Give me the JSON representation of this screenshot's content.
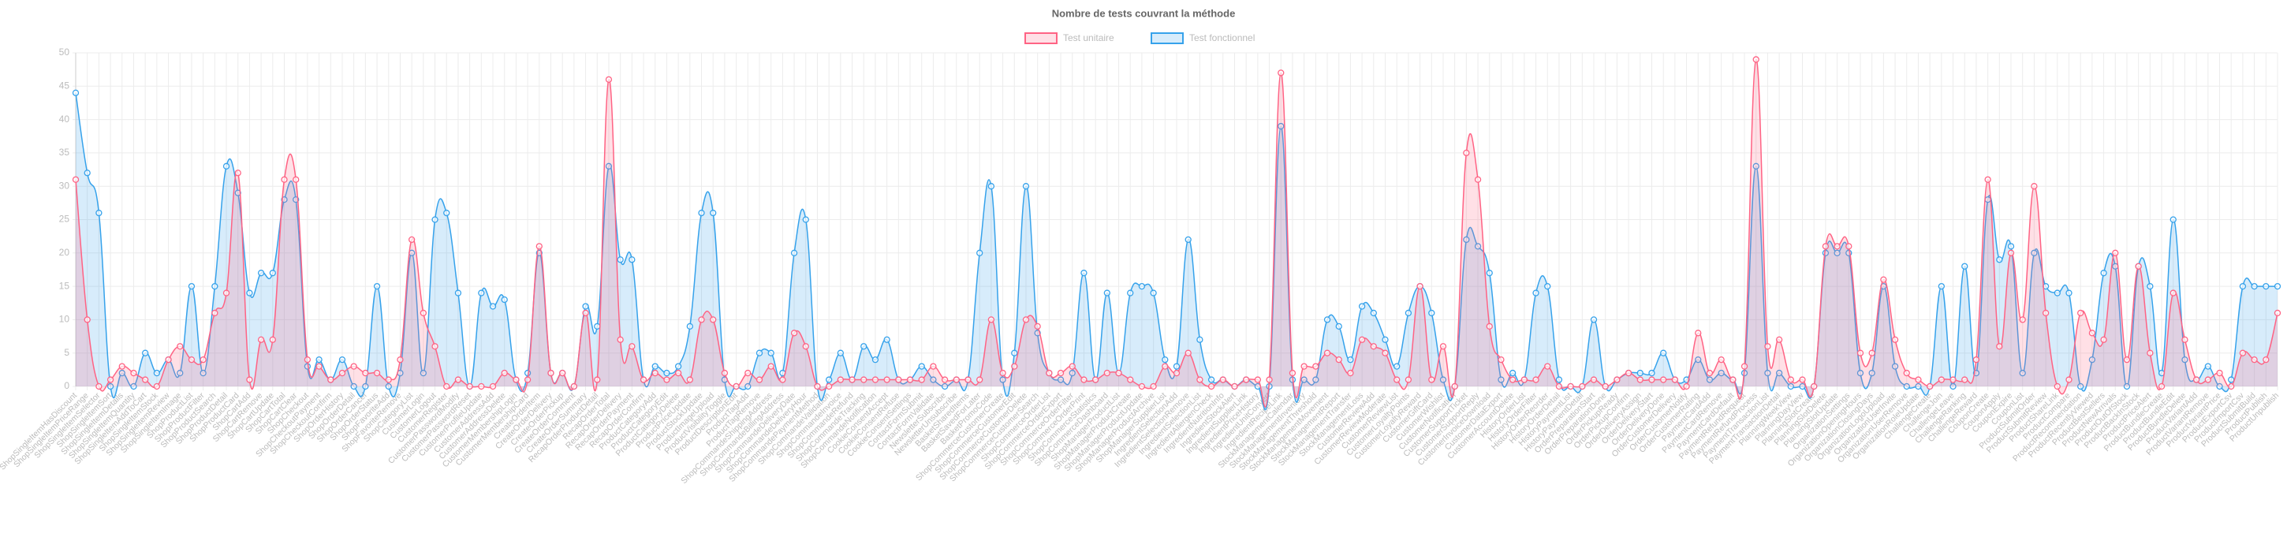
{
  "chart_data": {
    "type": "line",
    "title": "Nombre de tests couvrant la méthode",
    "categories": [
      "ShopSingleItemHasDiscount",
      "ShopSingleItemPriceRange",
      "ShopSingleItemSelector",
      "ShopSingleItemSort",
      "ShopSingleItemDetails",
      "ShopSingleItemQuantity",
      "ShopSingleItemAddToCart",
      "ShopSingleItemStock",
      "ShopSingleItemReview",
      "ShopSingleItemImage",
      "ShopProductList",
      "ShopProductFilter",
      "ShopProductSearch",
      "ShopProductDetail",
      "ShopProductCard",
      "ShopCartAdd",
      "ShopCartRemove",
      "ShopCartUpdate",
      "ShopCartTotal",
      "ShopCartClear",
      "ShopCheckout",
      "ShopCheckoutPayment",
      "ShopCheckoutConfirm",
      "ShopOrderHistory",
      "ShopOrderDetail",
      "ShopOrderCancel",
      "ShopOrderStatus",
      "ShopFavoriteAdd",
      "ShopFavoriteRemove",
      "ShopCategoryList",
      "CustomerLogin",
      "CustomerLogout",
      "CustomerRegister",
      "CustomerPasswordModify",
      "CustomerPasswordReset",
      "CustomerProfileUpdate",
      "CustomerAddressAdd",
      "CustomerAddressDelete",
      "CustomerMembershipLogin",
      "CustomerMembershipCard",
      "CreateOrderItem",
      "CreateOrderDelivery",
      "CreateOrderPickup",
      "CreateOrderComment",
      "CreateOrderSummary",
      "RecapOrderProductDetail",
      "RecapOrderTotal",
      "RecapOrderDelivery",
      "RecapOrderPayment",
      "RecapOrderConfirm",
      "ProductCategoryAdd",
      "ProductCategoryEdit",
      "ProductCategoryDelete",
      "ProductPriceUpdate",
      "ProductStockUpdate",
      "ProductImageUpload",
      "ProductVisibilityToggle",
      "ProductDescriptionEdit",
      "ProductTagAdd",
      "ProductTagRemove",
      "ShopCommandeShippingAddress",
      "ShopCommandeBillingAddress",
      "ShopCommandeDeliveryDate",
      "ShopCommandeDeliveryHour",
      "ShopCommandePaymentMethod",
      "ShopCommandeValidation",
      "ShopCommandeInvoice",
      "ShopCommandeRefund",
      "ShopCommandeTracking",
      "ShopCommandeNotification",
      "CookieConsentAccept",
      "CookieConsentRefuse",
      "CookieConsentSettings",
      "ContactFormSubmit",
      "ContactFormValidate",
      "NewsletterSubscribe",
      "NewsletterUnsubscribe",
      "BasketSharedItems",
      "BasketSavedForLater",
      "BasketPromoCode",
      "ShopCommerceCustomerCreate",
      "ShopCommerceCustomerEdit",
      "ShopCommerceCustomerDelete",
      "ShopCommerceCustomerSearch",
      "ShopCommerceOrderList",
      "ShopCommerceOrderExport",
      "ShopCommerceOrderFilter",
      "ShopCommerceOrderPrint",
      "ShopCommerceStatistics",
      "ShopCommerceDashboard",
      "ShopManagerProductList",
      "ShopManagerProductCreate",
      "ShopManagerProductUpdate",
      "ShopManagerProductArchive",
      "ShopManagerSupplierList",
      "IngredientSelectionAdd",
      "IngredientSelectionRemove",
      "IngredientSelectionList",
      "IngredientAllergenCheck",
      "IngredientNutritionInfo",
      "IngredientStockAlert",
      "IngredientSupplierLink",
      "IngredientPriceHistory",
      "IngredientUnitConvert",
      "IngredientRecipeLink",
      "StockManagementCalendar",
      "StockManagementInventory",
      "StockManagementThreshold",
      "StockManagementMovement",
      "StockManagementReport",
      "StockManagementTransfer",
      "StockManagementLoss",
      "CustomerReviewAdd",
      "CustomerReviewModerate",
      "CustomerReviewList",
      "CustomerLoyaltyPoints",
      "CustomerLoyaltyReward",
      "CustomerGiftCard",
      "CustomerWishlist",
      "CustomerNotification",
      "CustomerSupportTicket",
      "CustomerSupportReply",
      "CustomerInvoiceDownload",
      "CustomerDataExport",
      "CustomerAccountDelete",
      "HistoryOrderList",
      "HistoryOrderFilter",
      "HistoryOrderReorder",
      "HistoryOrderDetail",
      "HistoryPaymentList",
      "HistoryPaymentDetail",
      "OrderPreparationStart",
      "OrderPreparationDone",
      "OrderPickupReady",
      "OrderPickupConfirm",
      "OrderDeliveryAssign",
      "OrderDeliveryStart",
      "OrderDeliveryDone",
      "OrderCustomerDelivery",
      "OrderCustomerNotify",
      "OrderCustomerRating",
      "PaymentCardAdd",
      "PaymentCardRemove",
      "PaymentCardDefault",
      "PaymentRefundRequest",
      "PaymentRefundProcess",
      "PaymentTransactionList",
      "PaymentTransactionDetail",
      "PlanningWeekView",
      "PlanningDayView",
      "PlanningSlotCreate",
      "PlanningSlotDelete",
      "PlanningSlotUpdate",
      "OrganizationSettings",
      "OrganizationOpeningHours",
      "OrganizationClosingDays",
      "OrganizationLogoUpload",
      "OrganizationUserInvite",
      "OrganizationUserRemove",
      "OrganizationRoleUpdate",
      "ChallengeCreate",
      "ChallengeJoin",
      "ChallengeLeave",
      "ChallengeRanking",
      "ChallengeReward",
      "CouponCreate",
      "CouponApply",
      "CouponExpire",
      "CouponList",
      "ProductSubmitOrder",
      "ProductSubmitReview",
      "ProductShareLink",
      "ProductCompare",
      "ProductRecommendation",
      "ProductRecentlyViewed",
      "ProductBestSellers",
      "ProductNewArrivals",
      "ProductOutOfStock",
      "ProductBackInStock",
      "ProductPriceAlert",
      "ProductBundleCreate",
      "ProductBundleEdit",
      "ProductBundleDelete",
      "ProductVariantAdd",
      "ProductVariantRemove",
      "ProductVariantPrice",
      "ProductExportCsv",
      "ProductImportCsv",
      "ProductSubmitBuild",
      "ProductPublish",
      "ProductUnpublish"
    ],
    "series": [
      {
        "name": "Test unitaire",
        "color": "#ff6384",
        "values": [
          31,
          10,
          0,
          1,
          3,
          2,
          1,
          0,
          4,
          6,
          4,
          4,
          11,
          14,
          32,
          1,
          7,
          7,
          31,
          31,
          4,
          3,
          1,
          2,
          3,
          2,
          2,
          1,
          4,
          22,
          11,
          6,
          0,
          1,
          0,
          0,
          0,
          2,
          1,
          1,
          21,
          2,
          2,
          0,
          11,
          1,
          46,
          7,
          6,
          1,
          2,
          1,
          2,
          1,
          10,
          10,
          2,
          0,
          2,
          1,
          3,
          1,
          8,
          6,
          0,
          0,
          1,
          1,
          1,
          1,
          1,
          1,
          1,
          1,
          3,
          1,
          1,
          1,
          1,
          10,
          2,
          3,
          10,
          9,
          2,
          2,
          3,
          1,
          1,
          2,
          2,
          1,
          0,
          0,
          3,
          2,
          5,
          1,
          0,
          1,
          0,
          1,
          1,
          1,
          47,
          2,
          3,
          3,
          5,
          4,
          2,
          7,
          6,
          5,
          1,
          1,
          15,
          1,
          6,
          0,
          35,
          31,
          9,
          4,
          1,
          1,
          1,
          3,
          0,
          0,
          0,
          1,
          0,
          1,
          2,
          1,
          1,
          1,
          1,
          0,
          8,
          2,
          4,
          1,
          3,
          49,
          6,
          7,
          1,
          1,
          0,
          21,
          21,
          21,
          5,
          5,
          16,
          7,
          2,
          1,
          0,
          1,
          1,
          1,
          4,
          31,
          6,
          20,
          10,
          30,
          11,
          0,
          1,
          11,
          8,
          7,
          20,
          4,
          18,
          5,
          0,
          14,
          7,
          1,
          1,
          2,
          0,
          5,
          4,
          4,
          11
        ]
      },
      {
        "name": "Test fonctionnel",
        "color": "#36a2eb",
        "values": [
          44,
          32,
          26,
          0,
          2,
          0,
          5,
          2,
          4,
          2,
          15,
          2,
          15,
          33,
          29,
          14,
          17,
          17,
          28,
          28,
          3,
          4,
          1,
          4,
          0,
          0,
          15,
          0,
          2,
          20,
          2,
          25,
          26,
          14,
          0,
          14,
          12,
          13,
          1,
          2,
          20,
          2,
          2,
          0,
          12,
          9,
          33,
          19,
          19,
          1,
          3,
          2,
          3,
          9,
          26,
          26,
          1,
          0,
          0,
          5,
          5,
          2,
          20,
          25,
          0,
          1,
          5,
          1,
          6,
          4,
          7,
          1,
          1,
          3,
          1,
          0,
          1,
          1,
          20,
          30,
          1,
          5,
          30,
          8,
          2,
          1,
          2,
          17,
          1,
          14,
          2,
          14,
          15,
          14,
          4,
          3,
          22,
          7,
          1,
          1,
          0,
          1,
          0,
          0,
          39,
          1,
          1,
          1,
          10,
          9,
          4,
          12,
          11,
          7,
          3,
          11,
          15,
          11,
          1,
          0,
          22,
          21,
          17,
          1,
          2,
          1,
          14,
          15,
          1,
          0,
          0,
          10,
          0,
          1,
          2,
          2,
          2,
          5,
          1,
          1,
          4,
          1,
          2,
          1,
          2,
          33,
          2,
          2,
          0,
          0,
          0,
          20,
          20,
          20,
          2,
          2,
          15,
          3,
          0,
          0,
          0,
          15,
          0,
          18,
          2,
          28,
          19,
          21,
          2,
          20,
          15,
          14,
          14,
          0,
          4,
          17,
          18,
          0,
          18,
          15,
          2,
          25,
          4,
          1,
          3,
          0,
          1,
          15,
          15,
          15,
          15
        ]
      }
    ],
    "ylim": [
      0,
      50
    ],
    "yticks": [
      0,
      5,
      10,
      15,
      20,
      25,
      30,
      35,
      40,
      45,
      50
    ],
    "grid": true,
    "legend": "top"
  }
}
